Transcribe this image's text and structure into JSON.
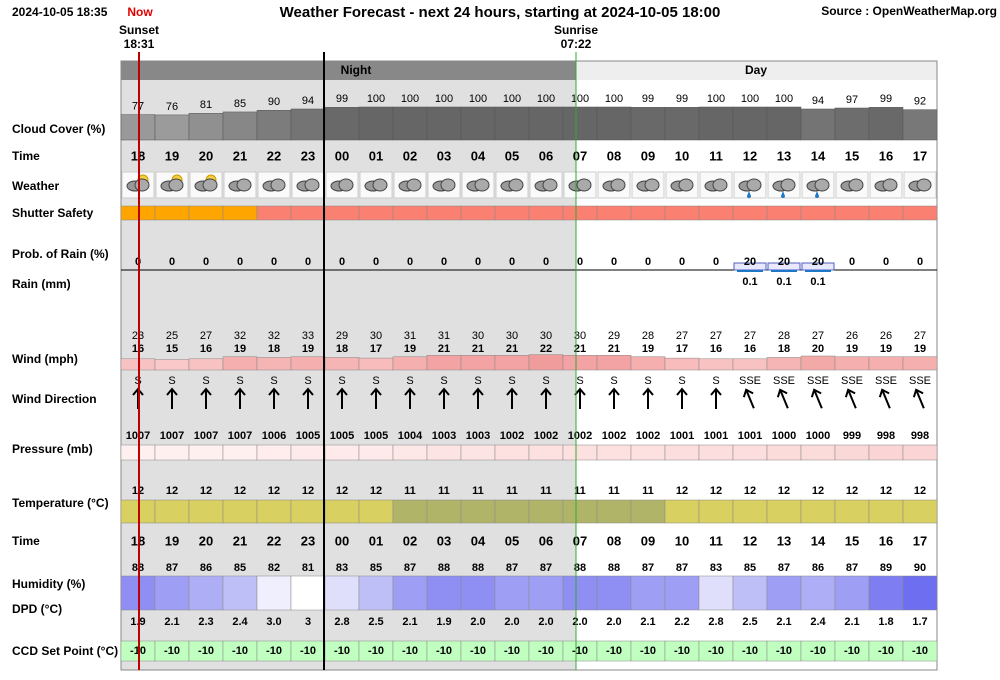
{
  "header": {
    "timestamp": "2024-10-05 18:35",
    "now": "Now",
    "title": "Weather Forecast - next 24 hours, starting at 2024-10-05 18:00",
    "source": "Source : OpenWeatherMap.org",
    "sunset_label": "Sunset",
    "sunset_time": "18:31",
    "sunrise_label": "Sunrise",
    "sunrise_time": "07:22",
    "night": "Night",
    "day": "Day"
  },
  "labels": {
    "cloud_cover": "Cloud Cover (%)",
    "time": "Time",
    "weather": "Weather",
    "shutter_safety": "Shutter Safety",
    "rain_probability": "Prob. of Rain (%)",
    "rain": "Rain (mm)",
    "wind": "Wind (mph)",
    "wind_direction": "Wind Direction",
    "pressure": "Pressure (mb)",
    "temperature": "Temperature (°C)",
    "time_bottom": "Time",
    "humidity": "Humidity (%)",
    "dpd": "DPD (°C)",
    "ccd": "CCD Set Point (°C)"
  },
  "hours": [
    "18",
    "19",
    "20",
    "21",
    "22",
    "23",
    "00",
    "01",
    "02",
    "03",
    "04",
    "05",
    "06",
    "07",
    "08",
    "09",
    "10",
    "11",
    "12",
    "13",
    "14",
    "15",
    "16",
    "17"
  ],
  "cloud_cover": [
    77,
    76,
    81,
    85,
    90,
    94,
    99,
    100,
    100,
    100,
    100,
    100,
    100,
    100,
    100,
    99,
    99,
    100,
    100,
    100,
    94,
    97,
    99,
    92
  ],
  "rain_probability": [
    0,
    0,
    0,
    0,
    0,
    0,
    0,
    0,
    0,
    0,
    0,
    0,
    0,
    0,
    0,
    0,
    0,
    0,
    20,
    20,
    20,
    0,
    0,
    0
  ],
  "rain_mm": [
    null,
    null,
    null,
    null,
    null,
    null,
    null,
    null,
    null,
    null,
    null,
    null,
    null,
    null,
    null,
    null,
    null,
    null,
    0.1,
    0.1,
    0.1,
    null,
    null,
    null
  ],
  "wind_gust": [
    23,
    25,
    27,
    32,
    32,
    33,
    29,
    30,
    31,
    31,
    30,
    30,
    30,
    30,
    29,
    28,
    27,
    27,
    27,
    28,
    27,
    26,
    26,
    27
  ],
  "wind_speed": [
    16,
    15,
    16,
    19,
    18,
    19,
    18,
    17,
    19,
    21,
    21,
    21,
    22,
    21,
    21,
    19,
    17,
    16,
    16,
    18,
    20,
    19,
    19,
    19
  ],
  "wind_direction": [
    "S",
    "S",
    "S",
    "S",
    "S",
    "S",
    "S",
    "S",
    "S",
    "S",
    "S",
    "S",
    "S",
    "S",
    "S",
    "S",
    "S",
    "S",
    "SSE",
    "SSE",
    "SSE",
    "SSE",
    "SSE",
    "SSE"
  ],
  "pressure": [
    1007,
    1007,
    1007,
    1007,
    1006,
    1005,
    1005,
    1005,
    1004,
    1003,
    1003,
    1002,
    1002,
    1002,
    1002,
    1002,
    1001,
    1001,
    1001,
    1000,
    1000,
    999,
    998,
    998
  ],
  "temperature": [
    12,
    12,
    12,
    12,
    12,
    12,
    12,
    12,
    11,
    11,
    11,
    11,
    11,
    11,
    11,
    11,
    12,
    12,
    12,
    12,
    12,
    12,
    12,
    12
  ],
  "humidity": [
    88,
    87,
    86,
    85,
    82,
    81,
    83,
    85,
    87,
    88,
    88,
    87,
    87,
    88,
    88,
    87,
    87,
    83,
    85,
    87,
    86,
    87,
    89,
    90
  ],
  "dpd": [
    "1.9",
    "2.1",
    "2.3",
    "2.4",
    "3.0",
    "3",
    "2.8",
    "2.5",
    "2.1",
    "1.9",
    "2.0",
    "2.0",
    "2.0",
    "2.0",
    "2.0",
    "2.1",
    "2.2",
    "2.8",
    "2.5",
    "2.1",
    "2.4",
    "2.1",
    "1.8",
    "1.7"
  ],
  "ccd_set_point": [
    -10,
    -10,
    -10,
    -10,
    -10,
    -10,
    -10,
    -10,
    -10,
    -10,
    -10,
    -10,
    -10,
    -10,
    -10,
    -10,
    -10,
    -10,
    -10,
    -10,
    -10,
    -10,
    -10,
    -10
  ]
}
